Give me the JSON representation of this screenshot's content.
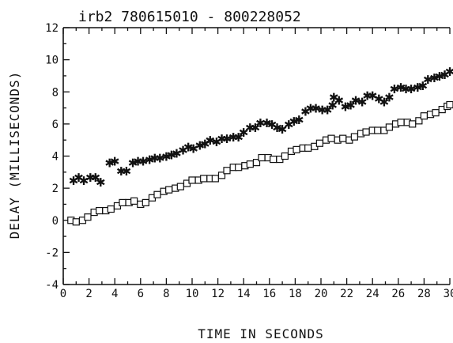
{
  "chart_data": {
    "type": "scatter",
    "title": "irb2   780615010 - 800228052",
    "xlabel": "TIME IN SECONDS",
    "ylabel": "DELAY (MILLISECONDS)",
    "xlim": [
      0,
      30
    ],
    "ylim": [
      -4,
      12
    ],
    "x_ticks": [
      "0",
      "2",
      "4",
      "6",
      "8",
      "10",
      "12",
      "14",
      "16",
      "18",
      "20",
      "22",
      "24",
      "26",
      "28",
      "30"
    ],
    "y_ticks": [
      "-4",
      "-2",
      "0",
      "2",
      "4",
      "6",
      "8",
      "10",
      "12"
    ],
    "grid": false,
    "legend": "none",
    "series": [
      {
        "marker": "asterisk",
        "points": [
          [
            0.8,
            2.5
          ],
          [
            1.2,
            2.7
          ],
          [
            1.6,
            2.5
          ],
          [
            2.1,
            2.7
          ],
          [
            2.5,
            2.7
          ],
          [
            2.9,
            2.4
          ],
          [
            3.6,
            3.6
          ],
          [
            4.0,
            3.7
          ],
          [
            4.5,
            3.1
          ],
          [
            4.9,
            3.1
          ],
          [
            5.4,
            3.6
          ],
          [
            5.8,
            3.7
          ],
          [
            6.2,
            3.7
          ],
          [
            6.7,
            3.8
          ],
          [
            7.1,
            3.9
          ],
          [
            7.5,
            3.9
          ],
          [
            8.0,
            4.0
          ],
          [
            8.4,
            4.1
          ],
          [
            8.8,
            4.2
          ],
          [
            9.3,
            4.4
          ],
          [
            9.7,
            4.6
          ],
          [
            10.1,
            4.5
          ],
          [
            10.6,
            4.7
          ],
          [
            11.0,
            4.8
          ],
          [
            11.4,
            5.0
          ],
          [
            11.9,
            4.9
          ],
          [
            12.3,
            5.1
          ],
          [
            12.7,
            5.1
          ],
          [
            13.2,
            5.2
          ],
          [
            13.6,
            5.2
          ],
          [
            14.0,
            5.5
          ],
          [
            14.5,
            5.8
          ],
          [
            14.9,
            5.8
          ],
          [
            15.3,
            6.1
          ],
          [
            15.8,
            6.1
          ],
          [
            16.2,
            6.0
          ],
          [
            16.6,
            5.8
          ],
          [
            17.0,
            5.7
          ],
          [
            17.5,
            6.0
          ],
          [
            17.9,
            6.2
          ],
          [
            18.3,
            6.3
          ],
          [
            18.8,
            6.8
          ],
          [
            19.2,
            7.0
          ],
          [
            19.6,
            7.0
          ],
          [
            20.1,
            6.9
          ],
          [
            20.5,
            6.9
          ],
          [
            20.9,
            7.2
          ],
          [
            21.0,
            7.7
          ],
          [
            21.4,
            7.5
          ],
          [
            21.9,
            7.1
          ],
          [
            22.3,
            7.2
          ],
          [
            22.7,
            7.5
          ],
          [
            23.2,
            7.4
          ],
          [
            23.6,
            7.8
          ],
          [
            24.0,
            7.8
          ],
          [
            24.5,
            7.6
          ],
          [
            24.9,
            7.4
          ],
          [
            25.3,
            7.7
          ],
          [
            25.7,
            8.2
          ],
          [
            26.2,
            8.3
          ],
          [
            26.6,
            8.2
          ],
          [
            27.0,
            8.2
          ],
          [
            27.5,
            8.3
          ],
          [
            27.9,
            8.4
          ],
          [
            28.3,
            8.8
          ],
          [
            28.8,
            8.9
          ],
          [
            29.2,
            9.0
          ],
          [
            29.6,
            9.1
          ],
          [
            30.0,
            9.3
          ]
        ]
      },
      {
        "marker": "open-square",
        "points": [
          [
            0.6,
            0.0
          ],
          [
            1.0,
            -0.1
          ],
          [
            1.5,
            0.0
          ],
          [
            1.9,
            0.2
          ],
          [
            2.4,
            0.5
          ],
          [
            2.8,
            0.6
          ],
          [
            3.3,
            0.6
          ],
          [
            3.7,
            0.7
          ],
          [
            4.2,
            0.9
          ],
          [
            4.6,
            1.1
          ],
          [
            5.1,
            1.1
          ],
          [
            5.5,
            1.2
          ],
          [
            6.0,
            1.0
          ],
          [
            6.4,
            1.1
          ],
          [
            6.9,
            1.4
          ],
          [
            7.3,
            1.6
          ],
          [
            7.8,
            1.8
          ],
          [
            8.2,
            1.9
          ],
          [
            8.7,
            2.0
          ],
          [
            9.1,
            2.1
          ],
          [
            9.6,
            2.3
          ],
          [
            10.0,
            2.5
          ],
          [
            10.5,
            2.5
          ],
          [
            10.9,
            2.6
          ],
          [
            11.4,
            2.6
          ],
          [
            11.8,
            2.6
          ],
          [
            12.3,
            2.8
          ],
          [
            12.7,
            3.1
          ],
          [
            13.2,
            3.3
          ],
          [
            13.6,
            3.3
          ],
          [
            14.1,
            3.4
          ],
          [
            14.5,
            3.5
          ],
          [
            15.0,
            3.6
          ],
          [
            15.4,
            3.9
          ],
          [
            15.9,
            3.9
          ],
          [
            16.3,
            3.8
          ],
          [
            16.8,
            3.8
          ],
          [
            17.2,
            4.0
          ],
          [
            17.7,
            4.3
          ],
          [
            18.1,
            4.4
          ],
          [
            18.6,
            4.5
          ],
          [
            19.0,
            4.5
          ],
          [
            19.5,
            4.6
          ],
          [
            19.9,
            4.8
          ],
          [
            20.4,
            5.0
          ],
          [
            20.8,
            5.1
          ],
          [
            21.3,
            5.0
          ],
          [
            21.7,
            5.1
          ],
          [
            22.2,
            5.0
          ],
          [
            22.6,
            5.2
          ],
          [
            23.1,
            5.4
          ],
          [
            23.5,
            5.5
          ],
          [
            24.0,
            5.6
          ],
          [
            24.4,
            5.6
          ],
          [
            24.9,
            5.6
          ],
          [
            25.3,
            5.8
          ],
          [
            25.8,
            6.0
          ],
          [
            26.2,
            6.1
          ],
          [
            26.7,
            6.1
          ],
          [
            27.1,
            6.0
          ],
          [
            27.6,
            6.2
          ],
          [
            28.0,
            6.5
          ],
          [
            28.5,
            6.6
          ],
          [
            28.9,
            6.7
          ],
          [
            29.4,
            6.9
          ],
          [
            29.8,
            7.1
          ],
          [
            30.0,
            7.2
          ]
        ]
      }
    ]
  }
}
